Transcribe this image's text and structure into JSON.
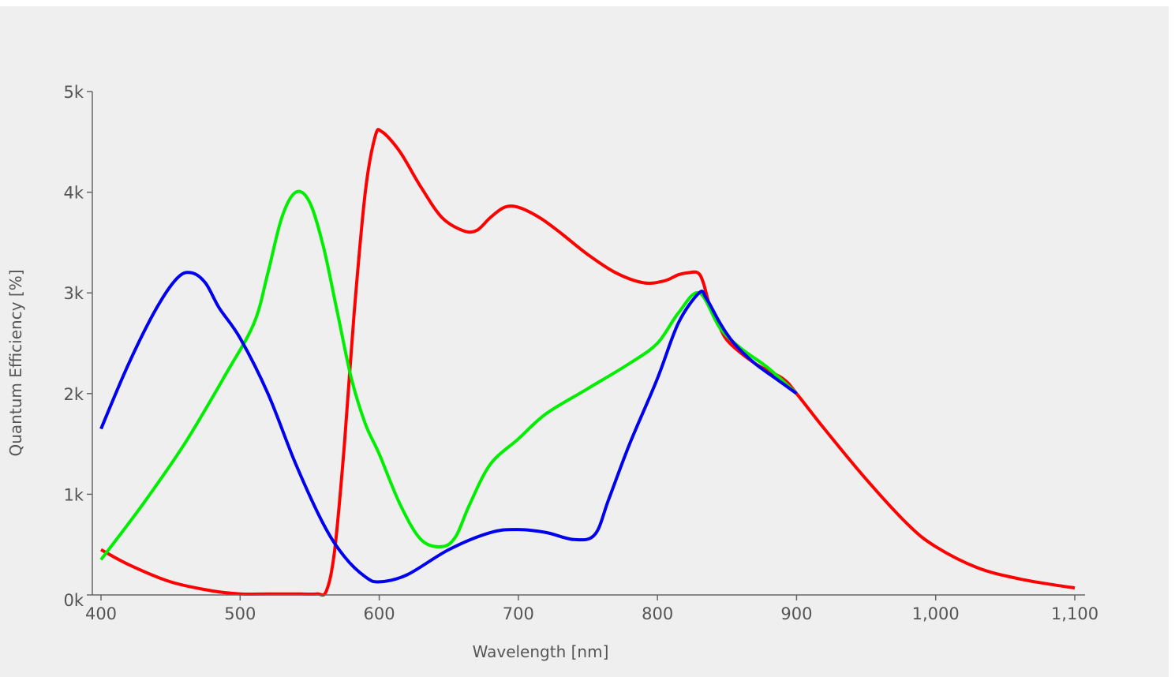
{
  "chart_data": {
    "type": "line",
    "title": "",
    "xlabel": "Wavelength [nm]",
    "ylabel": "Quantum Efficiency [%]",
    "xlim": [
      394,
      1110
    ],
    "ylim": [
      0,
      5000
    ],
    "xticks": [
      400,
      500,
      600,
      700,
      800,
      900,
      1000,
      1100
    ],
    "xtick_labels": [
      "400",
      "500",
      "600",
      "700",
      "800",
      "900",
      "1,000",
      "1,100"
    ],
    "yticks": [
      0,
      1000,
      2000,
      3000,
      4000,
      5000
    ],
    "ytick_labels": [
      "0k",
      "1k",
      "2k",
      "3k",
      "4k",
      "5k"
    ],
    "grid": false,
    "legend": "none",
    "series": [
      {
        "color": "#ff0000",
        "x": [
          400,
          420,
          450,
          480,
          500,
          520,
          540,
          555,
          562,
          568,
          575,
          582,
          590,
          597,
          602,
          615,
          630,
          645,
          660,
          670,
          680,
          690,
          700,
          715,
          730,
          750,
          770,
          790,
          805,
          815,
          822,
          829,
          833,
          838,
          845,
          852,
          870,
          890,
          900,
          920,
          950,
          980,
          1000,
          1030,
          1060,
          1085,
          1100
        ],
        "y": [
          450,
          300,
          130,
          40,
          10,
          10,
          10,
          10,
          40,
          450,
          1500,
          2800,
          4000,
          4550,
          4600,
          4400,
          4050,
          3750,
          3620,
          3620,
          3750,
          3850,
          3850,
          3750,
          3600,
          3380,
          3200,
          3100,
          3120,
          3180,
          3200,
          3200,
          3100,
          2850,
          2650,
          2500,
          2300,
          2150,
          2000,
          1650,
          1150,
          700,
          480,
          270,
          160,
          100,
          70
        ]
      },
      {
        "color": "#00ee00",
        "x": [
          400,
          430,
          460,
          490,
          510,
          520,
          530,
          540,
          550,
          560,
          570,
          580,
          590,
          600,
          615,
          630,
          645,
          655,
          665,
          680,
          700,
          720,
          750,
          780,
          800,
          815,
          830,
          845,
          860,
          880,
          900
        ],
        "y": [
          350,
          900,
          1500,
          2200,
          2700,
          3200,
          3750,
          4000,
          3900,
          3450,
          2800,
          2150,
          1700,
          1400,
          900,
          550,
          480,
          580,
          900,
          1300,
          1550,
          1800,
          2050,
          2300,
          2500,
          2800,
          3000,
          2650,
          2450,
          2250,
          2000
        ]
      },
      {
        "color": "#0000ee",
        "x": [
          400,
          420,
          440,
          455,
          465,
          475,
          485,
          500,
          520,
          540,
          560,
          575,
          590,
          600,
          620,
          650,
          680,
          700,
          720,
          740,
          755,
          765,
          780,
          800,
          815,
          830,
          835,
          845,
          855,
          870,
          885,
          900
        ],
        "y": [
          1650,
          2300,
          2850,
          3150,
          3200,
          3100,
          2850,
          2550,
          2000,
          1300,
          700,
          380,
          180,
          130,
          200,
          450,
          620,
          650,
          620,
          550,
          600,
          950,
          1500,
          2150,
          2700,
          3000,
          2950,
          2700,
          2500,
          2300,
          2150,
          2000
        ]
      }
    ]
  }
}
